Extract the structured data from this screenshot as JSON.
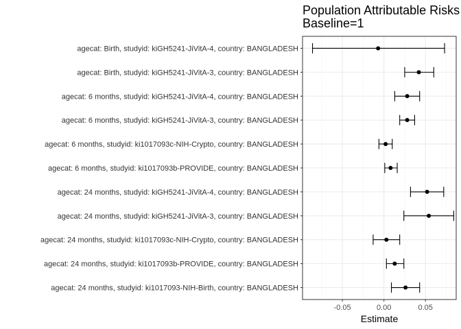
{
  "chart_data": {
    "type": "forest",
    "title": "Population Attributable Risks",
    "subtitle": "Baseline=1",
    "xlabel": "Estimate",
    "ylabel": "",
    "xlim": [
      -0.098,
      0.087
    ],
    "xticks": [
      -0.05,
      0.0,
      0.05
    ],
    "xtick_labels": [
      "-0.05",
      "0.00",
      "0.05"
    ],
    "grid": true,
    "rows": [
      {
        "label": "agecat: Birth, studyid: kiGH5241-JiVitA-4, country: BANGLADESH",
        "estimate": -0.007,
        "lower": -0.086,
        "upper": 0.073
      },
      {
        "label": "agecat: Birth, studyid: kiGH5241-JiVitA-3, country: BANGLADESH",
        "estimate": 0.042,
        "lower": 0.025,
        "upper": 0.06
      },
      {
        "label": "agecat: 6 months, studyid: kiGH5241-JiVitA-4, country: BANGLADESH",
        "estimate": 0.028,
        "lower": 0.013,
        "upper": 0.043
      },
      {
        "label": "agecat: 6 months, studyid: kiGH5241-JiVitA-3, country: BANGLADESH",
        "estimate": 0.028,
        "lower": 0.019,
        "upper": 0.037
      },
      {
        "label": "agecat: 6 months, studyid: ki1017093c-NIH-Crypto, country: BANGLADESH",
        "estimate": 0.002,
        "lower": -0.006,
        "upper": 0.01
      },
      {
        "label": "agecat: 6 months, studyid: ki1017093b-PROVIDE, country: BANGLADESH",
        "estimate": 0.008,
        "lower": 0.001,
        "upper": 0.016
      },
      {
        "label": "agecat: 24 months, studyid: kiGH5241-JiVitA-4, country: BANGLADESH",
        "estimate": 0.052,
        "lower": 0.032,
        "upper": 0.072
      },
      {
        "label": "agecat: 24 months, studyid: kiGH5241-JiVitA-3, country: BANGLADESH",
        "estimate": 0.054,
        "lower": 0.024,
        "upper": 0.084
      },
      {
        "label": "agecat: 24 months, studyid: ki1017093c-NIH-Crypto, country: BANGLADESH",
        "estimate": 0.003,
        "lower": -0.013,
        "upper": 0.019
      },
      {
        "label": "agecat: 24 months, studyid: ki1017093b-PROVIDE, country: BANGLADESH",
        "estimate": 0.013,
        "lower": 0.003,
        "upper": 0.024
      },
      {
        "label": "agecat: 24 months, studyid: ki1017093-NIH-Birth, country: BANGLADESH",
        "estimate": 0.026,
        "lower": 0.009,
        "upper": 0.043
      }
    ]
  }
}
